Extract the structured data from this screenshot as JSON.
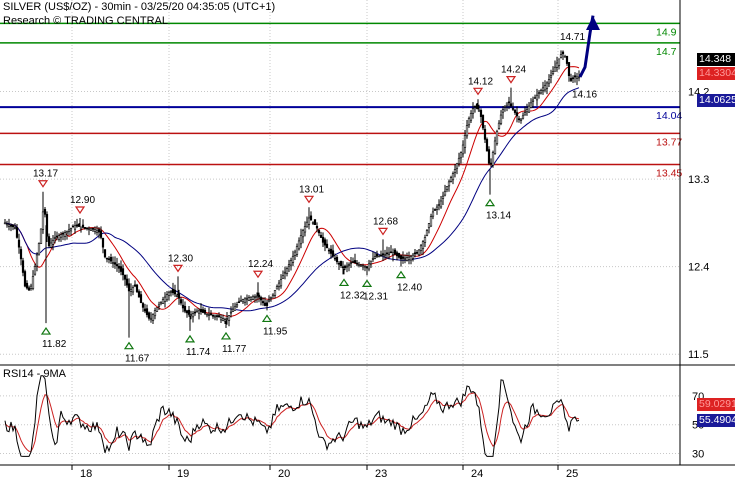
{
  "header": {
    "title": "SILVER (US$/OZ) - 30min - 03/25/20 04:35:05 (UTC+1)",
    "source": "Research © TRADING CENTRAL"
  },
  "price_tags": {
    "last": "14.348",
    "red": "14.3304",
    "blue": "14.0625"
  },
  "rsi_panel": {
    "label": "RSI14 - 9MA",
    "rsi_value": "55.4904",
    "ma_value": "59.0291"
  },
  "colors": {
    "resistance_green": "#008800",
    "support_blue": "#000099",
    "pivot_red": "#bb1111",
    "candles": "#000000",
    "ma_red": "#cc0000",
    "ma_blue": "#000080",
    "arrow": "#000080",
    "tag_last_bg": "#000000",
    "tag_red_bg": "#dd2222",
    "tag_blue_bg": "#1a1a99"
  },
  "chart_data": [
    {
      "type": "line",
      "subtype": "candlestick",
      "title": "SILVER (US$/OZ) - 30min",
      "x_ticks": [
        "18",
        "19",
        "20",
        "23",
        "24",
        "25"
      ],
      "y_ticks": [
        11.5,
        12.4,
        13.3,
        14.2
      ],
      "ylim": [
        11.42,
        15.12
      ],
      "grid": true,
      "horizontal_levels": [
        {
          "value": 14.9,
          "label": "14.9",
          "color": "green"
        },
        {
          "value": 14.7,
          "label": "14.7",
          "color": "green"
        },
        {
          "value": 14.04,
          "label": "14.04",
          "color": "blue"
        },
        {
          "value": 13.77,
          "label": "13.77",
          "color": "red"
        },
        {
          "value": 13.45,
          "label": "13.45",
          "color": "red"
        }
      ],
      "pivot_highs": [
        {
          "x": 43,
          "value": 13.17,
          "label": "13.17"
        },
        {
          "x": 80,
          "value": 12.9,
          "label": "12.90"
        },
        {
          "x": 178,
          "value": 12.3,
          "label": "12.30"
        },
        {
          "x": 258,
          "value": 12.24,
          "label": "12.24"
        },
        {
          "x": 309,
          "value": 13.01,
          "label": "13.01"
        },
        {
          "x": 383,
          "value": 12.68,
          "label": "12.68"
        },
        {
          "x": 478,
          "value": 14.12,
          "label": "14.12"
        },
        {
          "x": 511,
          "value": 14.24,
          "label": "14.24"
        }
      ],
      "pivot_lows": [
        {
          "x": 46,
          "value": 11.82,
          "label": "11.82"
        },
        {
          "x": 129,
          "value": 11.67,
          "label": "11.67"
        },
        {
          "x": 190,
          "value": 11.74,
          "label": "11.74"
        },
        {
          "x": 226,
          "value": 11.77,
          "label": "11.77"
        },
        {
          "x": 267,
          "value": 11.95,
          "label": "11.95"
        },
        {
          "x": 344,
          "value": 12.32,
          "label": "12.32"
        },
        {
          "x": 367,
          "value": 12.31,
          "label": "12.31"
        },
        {
          "x": 401,
          "value": 12.4,
          "label": "12.40"
        },
        {
          "x": 490,
          "value": 13.14,
          "label": "13.14"
        }
      ],
      "annotations": [
        {
          "label": "14.71",
          "value": 14.71
        },
        {
          "label": "14.16",
          "value": 14.16
        }
      ],
      "price_path": [
        [
          5,
          12.85
        ],
        [
          15,
          12.8
        ],
        [
          20,
          12.55
        ],
        [
          25,
          12.2
        ],
        [
          30,
          12.15
        ],
        [
          35,
          12.4
        ],
        [
          40,
          12.7
        ],
        [
          44,
          13.05
        ],
        [
          48,
          12.6
        ],
        [
          55,
          12.7
        ],
        [
          65,
          12.75
        ],
        [
          75,
          12.82
        ],
        [
          85,
          12.8
        ],
        [
          95,
          12.78
        ],
        [
          100,
          12.75
        ],
        [
          105,
          12.5
        ],
        [
          112,
          12.45
        ],
        [
          118,
          12.4
        ],
        [
          124,
          12.3
        ],
        [
          129,
          12.15
        ],
        [
          135,
          12.2
        ],
        [
          142,
          12.0
        ],
        [
          150,
          11.85
        ],
        [
          155,
          11.95
        ],
        [
          162,
          12.05
        ],
        [
          170,
          12.15
        ],
        [
          178,
          12.1
        ],
        [
          184,
          11.95
        ],
        [
          190,
          11.9
        ],
        [
          198,
          11.95
        ],
        [
          205,
          11.92
        ],
        [
          212,
          11.9
        ],
        [
          220,
          11.88
        ],
        [
          226,
          11.85
        ],
        [
          232,
          11.95
        ],
        [
          240,
          12.05
        ],
        [
          248,
          12.08
        ],
        [
          258,
          12.1
        ],
        [
          265,
          12.0
        ],
        [
          272,
          12.1
        ],
        [
          280,
          12.25
        ],
        [
          288,
          12.4
        ],
        [
          295,
          12.55
        ],
        [
          302,
          12.75
        ],
        [
          309,
          12.9
        ],
        [
          316,
          12.82
        ],
        [
          323,
          12.65
        ],
        [
          330,
          12.55
        ],
        [
          337,
          12.45
        ],
        [
          344,
          12.38
        ],
        [
          352,
          12.45
        ],
        [
          360,
          12.42
        ],
        [
          367,
          12.4
        ],
        [
          374,
          12.5
        ],
        [
          383,
          12.52
        ],
        [
          392,
          12.55
        ],
        [
          401,
          12.48
        ],
        [
          410,
          12.5
        ],
        [
          418,
          12.55
        ],
        [
          425,
          12.7
        ],
        [
          432,
          12.95
        ],
        [
          440,
          13.05
        ],
        [
          448,
          13.25
        ],
        [
          455,
          13.4
        ],
        [
          462,
          13.6
        ],
        [
          468,
          13.9
        ],
        [
          474,
          14.05
        ],
        [
          480,
          14.0
        ],
        [
          486,
          13.65
        ],
        [
          490,
          13.4
        ],
        [
          496,
          13.75
        ],
        [
          502,
          14.0
        ],
        [
          508,
          14.1
        ],
        [
          514,
          14.0
        ],
        [
          520,
          13.9
        ],
        [
          526,
          14.0
        ],
        [
          532,
          14.1
        ],
        [
          540,
          14.2
        ],
        [
          548,
          14.3
        ],
        [
          555,
          14.45
        ],
        [
          562,
          14.6
        ],
        [
          566,
          14.55
        ],
        [
          570,
          14.3
        ],
        [
          574,
          14.35
        ],
        [
          579,
          14.35
        ]
      ],
      "rsi": {
        "label": "RSI14 - 9MA",
        "y_ticks": [
          30,
          50,
          70
        ],
        "ylim": [
          22,
          88
        ],
        "last_rsi": 55.4904,
        "last_ma": 59.0291
      }
    }
  ]
}
